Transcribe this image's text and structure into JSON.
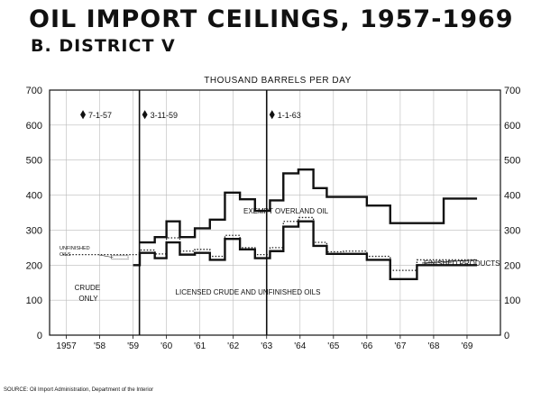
{
  "header": {
    "title": "OIL IMPORT CEILINGS, 1957-1969",
    "subtitle": "B. DISTRICT V"
  },
  "footer": {
    "source": "SOURCE: Oil Import Administration, Department of the Interior"
  },
  "chart_data": {
    "type": "line",
    "title": "OIL IMPORT CEILINGS, 1957-1969",
    "subtitle": "B. DISTRICT V",
    "unit_label": "THOUSAND BARRELS PER DAY",
    "xlabel": "",
    "ylabel": "",
    "ylim": [
      0,
      700
    ],
    "yticks": [
      0,
      100,
      200,
      300,
      400,
      500,
      600,
      700
    ],
    "xlim": [
      1956.5,
      1970
    ],
    "xticks": [
      {
        "value": 1957,
        "label": "1957"
      },
      {
        "value": 1958,
        "label": "'58"
      },
      {
        "value": 1959,
        "label": "'59"
      },
      {
        "value": 1960,
        "label": "'60"
      },
      {
        "value": 1961,
        "label": "'61"
      },
      {
        "value": 1962,
        "label": "'62"
      },
      {
        "value": 1963,
        "label": "'63"
      },
      {
        "value": 1964,
        "label": "'64"
      },
      {
        "value": 1965,
        "label": "'65"
      },
      {
        "value": 1966,
        "label": "'66"
      },
      {
        "value": 1967,
        "label": "'67"
      },
      {
        "value": 1968,
        "label": "'68"
      },
      {
        "value": 1969,
        "label": "'69"
      }
    ],
    "grid": true,
    "series": [
      {
        "name": "EXEMPT OVERLAND OIL",
        "style": "solid",
        "x_edges": [
          1959.2,
          1959.65,
          1960.0,
          1960.4,
          1960.85,
          1961.3,
          1961.75,
          1962.2,
          1962.65,
          1963.1,
          1963.5,
          1963.95,
          1964.4,
          1964.8,
          1965.3,
          1966.0,
          1966.7,
          1967.5,
          1968.3,
          1969.3
        ],
        "values": [
          265,
          280,
          325,
          280,
          305,
          330,
          407,
          388,
          355,
          385,
          462,
          473,
          420,
          395,
          395,
          370,
          320,
          320,
          390,
          390
        ]
      },
      {
        "name": "FINISHED PRODUCTS",
        "style": "dotted",
        "x_edges": [
          1956.9,
          1958.85,
          1959.2,
          1959.65,
          1960.0,
          1960.4,
          1960.85,
          1961.3,
          1961.75,
          1962.2,
          1962.65,
          1963.1,
          1963.5,
          1963.95,
          1964.4,
          1964.8,
          1965.3,
          1966.0,
          1966.7,
          1967.5,
          1968.3,
          1969.3
        ],
        "values": [
          230,
          230,
          243,
          232,
          278,
          240,
          245,
          225,
          285,
          250,
          230,
          250,
          325,
          336,
          265,
          238,
          240,
          225,
          185,
          215,
          215,
          215
        ]
      },
      {
        "name": "LICENSED CRUDE AND UNFINISHED OILS",
        "style": "solid",
        "x_edges": [
          1959.0,
          1959.2,
          1959.65,
          1960.0,
          1960.4,
          1960.85,
          1961.3,
          1961.75,
          1962.2,
          1962.65,
          1963.1,
          1963.5,
          1963.95,
          1964.4,
          1964.8,
          1965.3,
          1966.0,
          1966.7,
          1967.5,
          1968.3,
          1969.3
        ],
        "values": [
          200,
          235,
          220,
          265,
          230,
          235,
          215,
          275,
          245,
          220,
          240,
          310,
          325,
          255,
          232,
          232,
          215,
          160,
          200,
          200,
          200
        ]
      },
      {
        "name": "UNFINISHED OILS",
        "style": "hatched",
        "x_edges": [
          1958.35,
          1958.85
        ],
        "values": [
          222
        ]
      }
    ],
    "events": [
      {
        "label": "7-1-57",
        "x": 1957.5,
        "vline": false
      },
      {
        "label": "3-11-59",
        "x": 1959.19,
        "vline": true
      },
      {
        "label": "1-1-63",
        "x": 1963.0,
        "vline": true
      }
    ],
    "annotations": [
      {
        "text": "EXEMPT OVERLAND OIL"
      },
      {
        "text": "FINISHED PRODUCTS"
      },
      {
        "text": "UNFINISHED OILS"
      },
      {
        "text": "CRUDE ONLY"
      },
      {
        "text": "LICENSED CRUDE AND UNFINISHED OILS"
      }
    ]
  }
}
